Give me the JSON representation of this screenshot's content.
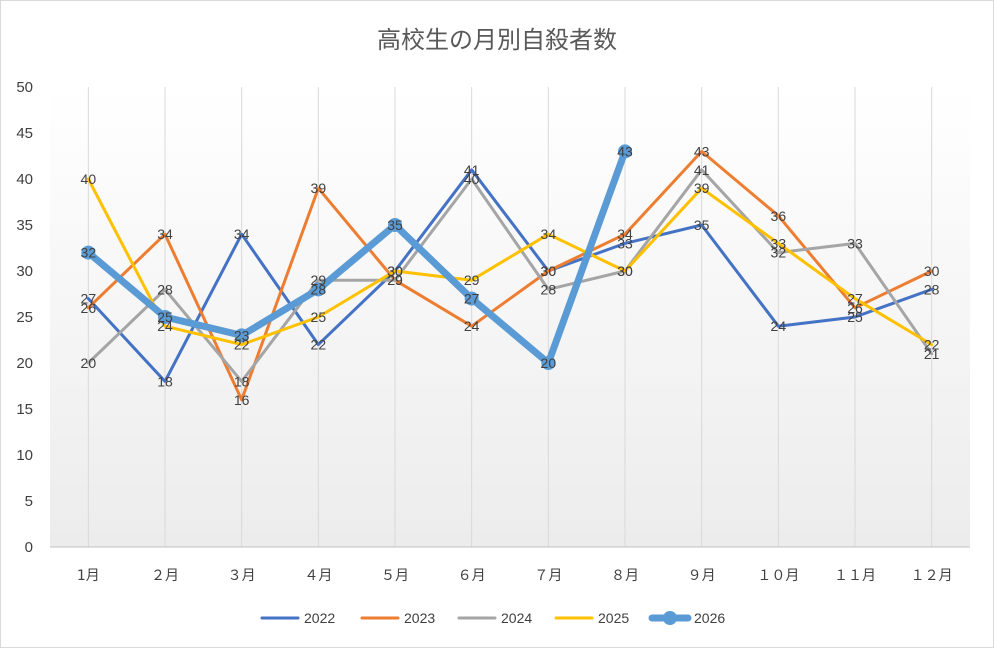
{
  "chart_data": {
    "type": "line",
    "title": "高校生の月別自殺者数",
    "xlabel": "",
    "ylabel": "",
    "categories": [
      "1月",
      "２月",
      "３月",
      "４月",
      "５月",
      "６月",
      "７月",
      "８月",
      "９月",
      "１０月",
      "１１月",
      "１２月"
    ],
    "ylim": [
      0,
      50
    ],
    "yticks": [
      0,
      5,
      10,
      15,
      20,
      25,
      30,
      35,
      40,
      45,
      50
    ],
    "grid": "vertical",
    "legend": "bottom",
    "data_labels": true,
    "series": [
      {
        "name": "2022",
        "color": "#4472C4",
        "values": [
          27,
          18,
          34,
          22,
          30,
          41,
          30,
          33,
          35,
          24,
          25,
          28
        ]
      },
      {
        "name": "2023",
        "color": "#ED7D31",
        "values": [
          26,
          34,
          16,
          39,
          29,
          24,
          30,
          34,
          43,
          36,
          26,
          30
        ]
      },
      {
        "name": "2024",
        "color": "#A5A5A5",
        "values": [
          20,
          28,
          18,
          29,
          29,
          40,
          28,
          30,
          41,
          32,
          33,
          21
        ]
      },
      {
        "name": "2025",
        "color": "#FFC000",
        "values": [
          40,
          24,
          22,
          25,
          30,
          29,
          34,
          30,
          39,
          33,
          27,
          22
        ]
      },
      {
        "name": "2026",
        "color": "#5B9BD5",
        "values": [
          32,
          25,
          23,
          28,
          35,
          27,
          20,
          43,
          null,
          null,
          null,
          null
        ]
      }
    ]
  }
}
